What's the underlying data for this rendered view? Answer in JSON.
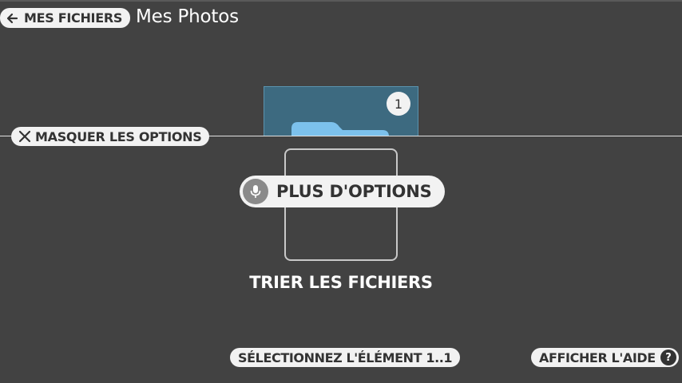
{
  "header": {
    "back_label": "MES FICHIERS",
    "title": "Mes Photos"
  },
  "folder": {
    "count": "1"
  },
  "options": {
    "hide_label": "MASQUER LES OPTIONS",
    "more_label": "PLUS D'OPTIONS",
    "current_option_label": "TRIER LES FICHIERS"
  },
  "footer": {
    "select_label": "SÉLECTIONNEZ L'ÉLÉMENT 1..1",
    "help_label": "AFFICHER L'AIDE",
    "help_icon_glyph": "?"
  },
  "colors": {
    "background": "#424242",
    "folder_tile": "#3d6a80",
    "folder_icon": "#7cc1ec",
    "pill": "#f2f2f2"
  },
  "icons": {
    "back": "arrow-left-icon",
    "hide": "close-icon",
    "more": "microphone-icon",
    "folder": "folder-icon",
    "help": "question-mark-icon"
  }
}
